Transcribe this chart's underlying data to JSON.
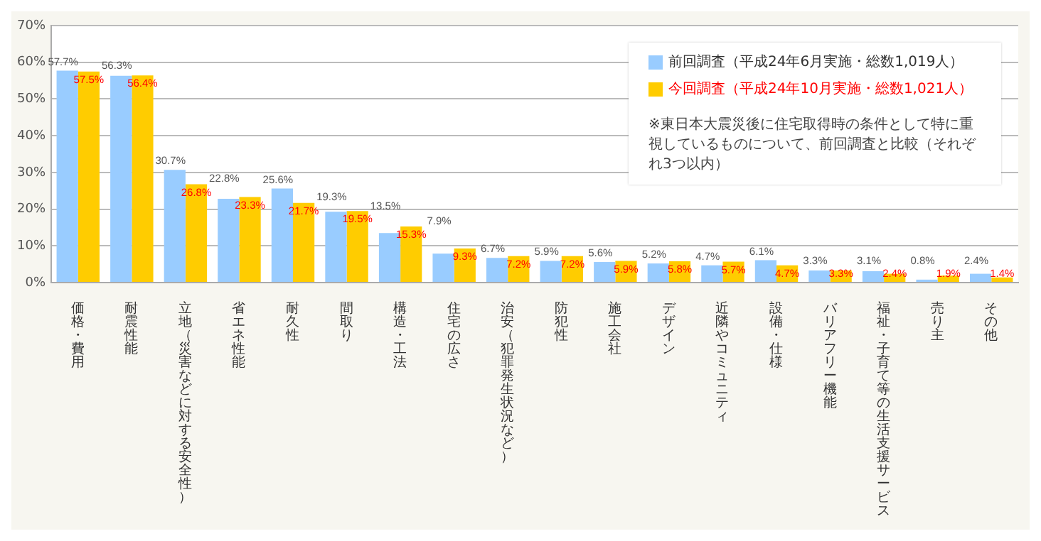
{
  "chart_data": {
    "type": "bar",
    "categories": [
      "価格・費用",
      "耐震性能",
      "立地（災害などに対する安全性）",
      "省エネ性能",
      "耐久性",
      "間取り",
      "構造・工法",
      "住宅の広さ",
      "治安（犯罪発生状況など）",
      "防犯性",
      "施工会社",
      "デザイン",
      "近隣やコミュニティ",
      "設備・仕様",
      "バリアフリー機能",
      "福祉・子育て等の生活支援サービス",
      "売り主",
      "その他"
    ],
    "series": [
      {
        "name": "前回調査（平成24年6月実施・総数1,019人）",
        "color": "#99ccff",
        "values": [
          57.7,
          56.3,
          30.7,
          22.8,
          25.6,
          19.3,
          13.5,
          7.9,
          6.7,
          5.9,
          5.6,
          5.2,
          4.7,
          6.1,
          3.3,
          3.1,
          0.8,
          2.4
        ],
        "value_labels": [
          "57.7%",
          "56.3%",
          "30.7%",
          "22.8%",
          "25.6%",
          "19.3%",
          "13.5%",
          "7.9%",
          "6.7%",
          "5.9%",
          "5.6%",
          "5.2%",
          "4.7%",
          "6.1%",
          "3.3%",
          "3.1%",
          "0.8%",
          "2.4%"
        ]
      },
      {
        "name": "今回調査（平成24年10月実施・総数1,021人）",
        "color": "#ffcc00",
        "values": [
          57.5,
          56.4,
          26.8,
          23.3,
          21.7,
          19.5,
          15.3,
          9.3,
          7.2,
          7.2,
          5.9,
          5.8,
          5.7,
          4.7,
          3.3,
          2.4,
          1.9,
          1.4
        ],
        "value_labels": [
          "57.5%",
          "56.4%",
          "26.8%",
          "23.3%",
          "21.7%",
          "19.5%",
          "15.3%",
          "9.3%",
          "7.2%",
          "7.2%",
          "5.9%",
          "5.8%",
          "5.7%",
          "4.7%",
          "3.3%",
          "2.4%",
          "1.9%",
          "1.4%"
        ]
      }
    ],
    "ylim": [
      0,
      70
    ],
    "yticks": [
      {
        "value": 0,
        "label": "0%"
      },
      {
        "value": 10,
        "label": "10%"
      },
      {
        "value": 20,
        "label": "20%"
      },
      {
        "value": 30,
        "label": "30%"
      },
      {
        "value": 40,
        "label": "40%"
      },
      {
        "value": 50,
        "label": "50%"
      },
      {
        "value": 60,
        "label": "60%"
      },
      {
        "value": 70,
        "label": "70%"
      }
    ],
    "grid": "y",
    "legend": "top right",
    "annotations": [
      "※東日本大震災後に住宅取得時の条件として特に重視しているものについて、前回調査と比較（それぞれ3つ以内）"
    ]
  }
}
